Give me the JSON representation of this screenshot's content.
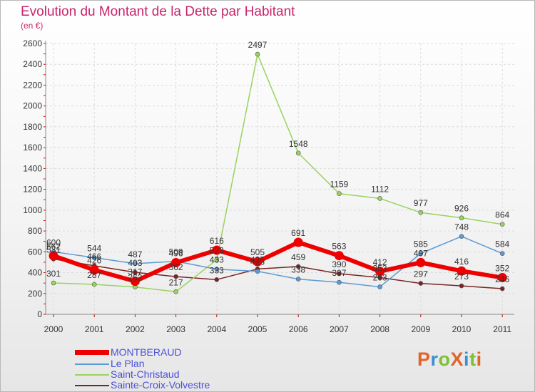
{
  "header": {
    "title": "Evolution du Montant de la Dette par Habitant",
    "subtitle": "(en €)"
  },
  "logo": {
    "text": "ProXiti",
    "colors": [
      "#e0652a",
      "#3d8fd1",
      "#7dbf35",
      "#e0652a",
      "#3d8fd1",
      "#7dbf35",
      "#e0652a"
    ]
  },
  "chart_data": {
    "type": "line",
    "title": "Evolution du Montant de la Dette par Habitant",
    "subtitle": "(en €)",
    "x": [
      "2000",
      "2001",
      "2002",
      "2003",
      "2004",
      "2005",
      "2006",
      "2007",
      "2008",
      "2009",
      "2010",
      "2011"
    ],
    "ylim": [
      0,
      2600
    ],
    "yticks": [
      0,
      200,
      400,
      600,
      800,
      1000,
      1200,
      1400,
      1600,
      1800,
      2000,
      2200,
      2400,
      2600
    ],
    "grid": true,
    "legend_position": "bottom-left",
    "series": [
      {
        "name": "MONTBERAUD",
        "color": "#ee0000",
        "width": 6,
        "values": [
          562,
          426,
          317,
          496,
          616,
          505,
          691,
          563,
          412,
          497,
          416,
          352
        ],
        "labels": [
          "562",
          "426",
          "317",
          "496",
          "616",
          "505",
          "691",
          "563",
          "412",
          "497",
          "416",
          "352"
        ]
      },
      {
        "name": "Le Plan",
        "color": "#5b9bd5",
        "width": 1.5,
        "values": [
          600,
          544,
          487,
          509,
          433,
          413,
          338,
          307,
          263,
          585,
          748,
          584
        ],
        "labels": [
          "600",
          "544",
          "487",
          "509",
          "433",
          "413",
          "338",
          "307",
          "263",
          "585",
          "748",
          "584"
        ]
      },
      {
        "name": "Saint-Christaud",
        "color": "#99d35d",
        "width": 1.5,
        "values": [
          301,
          287,
          262,
          217,
          523,
          2497,
          1548,
          1159,
          1112,
          977,
          926,
          864
        ],
        "labels": [
          "301",
          "287",
          "262",
          "217",
          "523",
          "2497",
          "1548",
          "1159",
          "1112",
          "977",
          "926",
          "864"
        ]
      },
      {
        "name": "Sainte-Croix-Volvestre",
        "color": "#7a2525",
        "width": 1.5,
        "values": [
          531,
          466,
          403,
          362,
          333,
          435,
          459,
          390,
          353,
          297,
          273,
          246
        ],
        "labels": [
          "531",
          "466",
          "403",
          "362",
          "333",
          "435",
          "459",
          "390",
          "353",
          "297",
          "273",
          "246"
        ]
      }
    ]
  }
}
